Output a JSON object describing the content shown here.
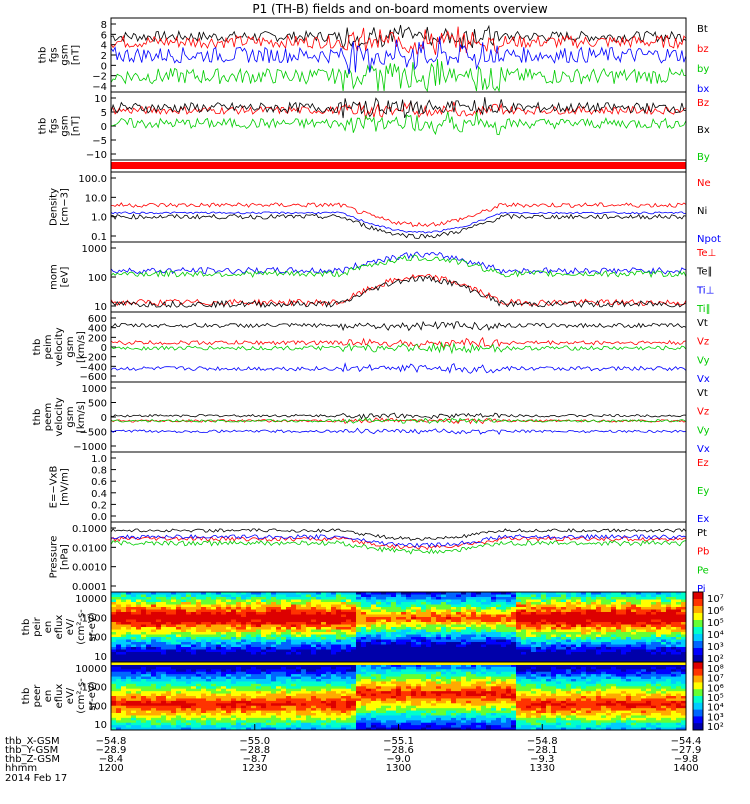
{
  "title": "P1 (TH-B) fields and on-board moments overview",
  "colors": {
    "black": "#000000",
    "red": "#ff0000",
    "green": "#00cc00",
    "blue": "#0000ff"
  },
  "chart_data": [
    {
      "type": "line",
      "id": "fgs_bt",
      "ylabel_lines": [
        "thb",
        "fgs",
        "gsm",
        "[nT]"
      ],
      "yticks": [
        "8",
        "6",
        "4",
        "2",
        "0",
        "−2",
        "−4"
      ],
      "ylim": [
        -5,
        9
      ],
      "series": [
        {
          "name": "Bt",
          "color": "black",
          "level": 5.5,
          "noise": 1.0
        },
        {
          "name": "bz",
          "color": "red",
          "level": 4.5,
          "noise": 1.2
        },
        {
          "name": "by",
          "color": "green",
          "level": -2.0,
          "noise": 1.5
        },
        {
          "name": "bx",
          "color": "blue",
          "level": 2.0,
          "noise": 1.5
        }
      ]
    },
    {
      "type": "line",
      "id": "fgs_bz",
      "ylabel_lines": [
        "thb",
        "fgs",
        "gsm",
        "[nT]"
      ],
      "yticks": [
        "10",
        "5",
        "0",
        "−5",
        "−10"
      ],
      "ylim": [
        -14,
        12
      ],
      "series": [
        {
          "name": "Bz",
          "color": "red",
          "level": 5,
          "noise": 1.5
        },
        {
          "name": "Bx",
          "color": "black",
          "level": 6,
          "noise": 2.0
        },
        {
          "name": "By",
          "color": "green",
          "level": 0,
          "noise": 2.0
        }
      ]
    },
    {
      "type": "strip",
      "id": "flag_bar",
      "colors": [
        "red"
      ]
    },
    {
      "type": "line",
      "id": "density",
      "ylabel_lines": [
        "Density",
        "[cm−3]"
      ],
      "yticks": [
        "100.0",
        "10.0",
        "1.0",
        "0.1"
      ],
      "ylim": [
        -1.3,
        2.3
      ],
      "log": true,
      "series": [
        {
          "name": "Ne",
          "color": "red",
          "level": 0.6,
          "noise": 0.12
        },
        {
          "name": "Ni",
          "color": "black",
          "level": 0.0,
          "noise": 0.12
        },
        {
          "name": "Npot",
          "color": "blue",
          "level": 0.2,
          "noise": 0.05
        }
      ]
    },
    {
      "type": "line",
      "id": "temperature",
      "ylabel_lines": [
        "mom",
        "[eV]"
      ],
      "yticks": [
        "1000",
        "100",
        "10"
      ],
      "ylim": [
        1,
        3.2
      ],
      "log": true,
      "series": [
        {
          "name": "Te⊥",
          "color": "red",
          "level": 1.3,
          "noise": 0.1
        },
        {
          "name": "Te∥",
          "color": "black",
          "level": 1.25,
          "noise": 0.1
        },
        {
          "name": "Ti⊥",
          "color": "blue",
          "level": 2.3,
          "noise": 0.1
        },
        {
          "name": "Ti∥",
          "color": "green",
          "level": 2.2,
          "noise": 0.1
        }
      ]
    },
    {
      "type": "line",
      "id": "peim_velocity",
      "ylabel_lines": [
        "thb",
        "peim",
        "velocity",
        "gsm",
        "[km/s]"
      ],
      "yticks": [
        "600",
        "400",
        "200",
        "0",
        "−200",
        "−400",
        "−600"
      ],
      "ylim": [
        -650,
        650
      ],
      "series": [
        {
          "name": "Vt",
          "color": "black",
          "level": 400,
          "noise": 40
        },
        {
          "name": "Vz",
          "color": "red",
          "level": 80,
          "noise": 40
        },
        {
          "name": "Vy",
          "color": "green",
          "level": -20,
          "noise": 40
        },
        {
          "name": "Vx",
          "color": "blue",
          "level": -400,
          "noise": 40
        }
      ]
    },
    {
      "type": "line",
      "id": "peem_velocity",
      "ylabel_lines": [
        "thb",
        "peem",
        "velocity",
        "gsm",
        "[km/s]"
      ],
      "yticks": [
        "1000",
        "500",
        "0",
        "−500",
        "−1000"
      ],
      "ylim": [
        -1200,
        1500
      ],
      "series": [
        {
          "name": "Vt",
          "color": "black",
          "level": 200,
          "noise": 50
        },
        {
          "name": "Vz",
          "color": "red",
          "level": 0,
          "noise": 50
        },
        {
          "name": "Vy",
          "color": "green",
          "level": 0,
          "noise": 50
        },
        {
          "name": "Vx",
          "color": "blue",
          "level": -400,
          "noise": 50
        }
      ]
    },
    {
      "type": "line",
      "id": "efield",
      "ylabel_lines": [
        "E=−VxB",
        "[mV/m]"
      ],
      "yticks": [
        "1.0",
        "0.8",
        "0.6",
        "0.4",
        "0.2",
        "0.0"
      ],
      "ylim": [
        0,
        1
      ],
      "series": [
        {
          "name": "Ez",
          "color": "red"
        },
        {
          "name": "Ey",
          "color": "green"
        },
        {
          "name": "Ex",
          "color": "blue"
        }
      ]
    },
    {
      "type": "line",
      "id": "pressure",
      "ylabel_lines": [
        "Pressure",
        "[nPa]"
      ],
      "yticks": [
        "0.1000",
        "0.0100",
        "0.0010",
        "0.0001"
      ],
      "ylim": [
        -4.2,
        -0.9
      ],
      "log": true,
      "series": [
        {
          "name": "Pt",
          "color": "black",
          "level": -1.3,
          "noise": 0.08
        },
        {
          "name": "Pb",
          "color": "red",
          "level": -1.7,
          "noise": 0.1
        },
        {
          "name": "Pe",
          "color": "green",
          "level": -1.9,
          "noise": 0.12
        },
        {
          "name": "Pi",
          "color": "blue",
          "level": -1.6,
          "noise": 0.1
        }
      ]
    },
    {
      "type": "heatmap",
      "id": "peir_spec",
      "ylabel_lines": [
        "thb",
        "peir",
        "en",
        "eflux",
        "eV/",
        "(cm²-s-",
        "sr-eV)"
      ],
      "yticks": [
        "10000",
        "1000",
        "100",
        "10"
      ],
      "colorbar_ticks": [
        "10⁷",
        "10⁶",
        "10⁵",
        "10⁴",
        "10³",
        "10²"
      ]
    },
    {
      "type": "heatmap",
      "id": "peer_spec",
      "ylabel_lines": [
        "thb",
        "peer",
        "en",
        "eflux",
        "eV/",
        "(cm²-s-",
        "sr-eV)"
      ],
      "yticks": [
        "10000",
        "1000",
        "100",
        "10"
      ],
      "colorbar_ticks": [
        "10⁸",
        "10⁷",
        "10⁶",
        "10⁵",
        "10⁴",
        "10³",
        "10²"
      ]
    }
  ],
  "x_axis": {
    "row_labels": [
      "thb_X-GSM",
      "thb_Y-GSM",
      "thb_Z-GSM",
      "hhmm",
      "2014 Feb 17"
    ],
    "ticks": [
      {
        "vals": [
          "−54.8",
          "−28.9",
          "−8.4",
          "1200"
        ]
      },
      {
        "vals": [
          "−55.0",
          "−28.8",
          "−8.7",
          "1230"
        ]
      },
      {
        "vals": [
          "−55.1",
          "−28.6",
          "−9.0",
          "1300"
        ]
      },
      {
        "vals": [
          "−54.8",
          "−28.1",
          "−9.3",
          "1330"
        ]
      },
      {
        "vals": [
          "−54.4",
          "−27.9",
          "−9.8",
          "1400"
        ]
      }
    ]
  }
}
